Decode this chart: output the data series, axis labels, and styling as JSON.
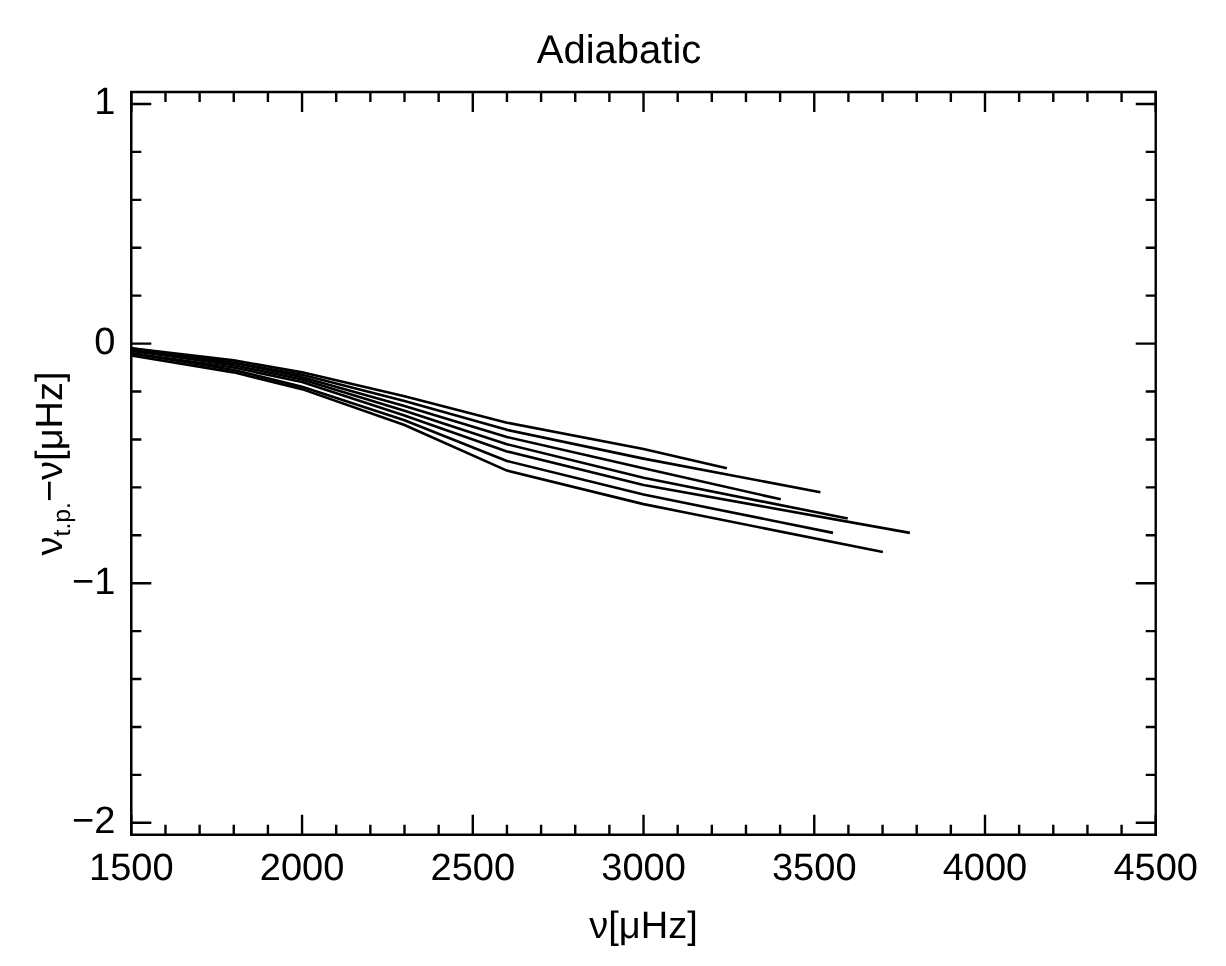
{
  "chart_data": {
    "type": "line",
    "title": "Adiabatic",
    "xlabel": "ν[μHz]",
    "ylabel": "ν$_{t.p.}$−ν[μHz]",
    "xlim": [
      1500,
      4500
    ],
    "xticks": [
      1500,
      {
        "value": 1600,
        "label": null
      },
      {
        "value": 1700,
        "label": null
      },
      {
        "value": 1800,
        "label": null
      },
      {
        "value": 1900,
        "label": null
      },
      2000,
      {
        "value": 2100,
        "label": null
      },
      {
        "value": 2200,
        "label": null
      },
      {
        "value": 2300,
        "label": null
      },
      {
        "value": 2400,
        "label": null
      },
      2500,
      {
        "value": 2600,
        "label": null
      },
      {
        "value": 2700,
        "label": null
      },
      {
        "value": 2800,
        "label": null
      },
      {
        "value": 2900,
        "label": null
      },
      3000,
      {
        "value": 3100,
        "label": null
      },
      {
        "value": 3200,
        "label": null
      },
      {
        "value": 3300,
        "label": null
      },
      {
        "value": 3400,
        "label": null
      },
      3500,
      {
        "value": 3600,
        "label": null
      },
      {
        "value": 3700,
        "label": null
      },
      {
        "value": 3800,
        "label": null
      },
      {
        "value": 3900,
        "label": null
      },
      4000,
      {
        "value": 4100,
        "label": null
      },
      {
        "value": 4200,
        "label": null
      },
      {
        "value": 4300,
        "label": null
      },
      {
        "value": 4400,
        "label": null
      },
      4500
    ],
    "ylim": [
      -2.05,
      1.05
    ],
    "yticks": [
      {
        "value": -2,
        "label": "−2"
      },
      {
        "value": -1.8,
        "label": null
      },
      {
        "value": -1.6,
        "label": null
      },
      {
        "value": -1.4,
        "label": null
      },
      {
        "value": -1.2,
        "label": null
      },
      {
        "value": -1,
        "label": "−1"
      },
      {
        "value": -0.8,
        "label": null
      },
      {
        "value": -0.6,
        "label": null
      },
      {
        "value": -0.4,
        "label": null
      },
      {
        "value": -0.2,
        "label": null
      },
      0,
      {
        "value": 0.2,
        "label": null
      },
      {
        "value": 0.4,
        "label": null
      },
      {
        "value": 0.6,
        "label": null
      },
      {
        "value": 0.8,
        "label": null
      },
      1
    ],
    "grid": false,
    "legend": false,
    "marker": "none",
    "line_style": "solid",
    "series": [
      {
        "color": "#000000",
        "x": [
          1500,
          1800,
          2000,
          2300,
          2600,
          3000,
          3244
        ],
        "values": [
          -0.02,
          -0.07,
          -0.12,
          -0.22,
          -0.33,
          -0.44,
          -0.52
        ]
      },
      {
        "color": "#000000",
        "x": [
          1500,
          1800,
          2000,
          2300,
          2600,
          3000,
          3518
        ],
        "values": [
          -0.02,
          -0.08,
          -0.13,
          -0.24,
          -0.36,
          -0.48,
          -0.62
        ]
      },
      {
        "color": "#000000",
        "x": [
          1500,
          1800,
          2000,
          2300,
          2600,
          3000,
          3402
        ],
        "values": [
          -0.03,
          -0.08,
          -0.14,
          -0.26,
          -0.39,
          -0.52,
          -0.65
        ]
      },
      {
        "color": "#000000",
        "x": [
          1500,
          1800,
          2000,
          2300,
          2600,
          3000,
          3598
        ],
        "values": [
          -0.03,
          -0.09,
          -0.15,
          -0.28,
          -0.42,
          -0.56,
          -0.73
        ]
      },
      {
        "color": "#000000",
        "x": [
          1500,
          1800,
          2000,
          2300,
          2600,
          3000,
          3780
        ],
        "values": [
          -0.04,
          -0.1,
          -0.16,
          -0.3,
          -0.45,
          -0.59,
          -0.79
        ]
      },
      {
        "color": "#000000",
        "x": [
          1500,
          1800,
          2000,
          2300,
          2600,
          3000,
          3555
        ],
        "values": [
          -0.04,
          -0.11,
          -0.18,
          -0.32,
          -0.49,
          -0.63,
          -0.79
        ]
      },
      {
        "color": "#000000",
        "x": [
          1500,
          1800,
          2000,
          2300,
          2600,
          3000,
          3701
        ],
        "values": [
          -0.05,
          -0.12,
          -0.19,
          -0.34,
          -0.53,
          -0.67,
          -0.87
        ]
      }
    ]
  }
}
